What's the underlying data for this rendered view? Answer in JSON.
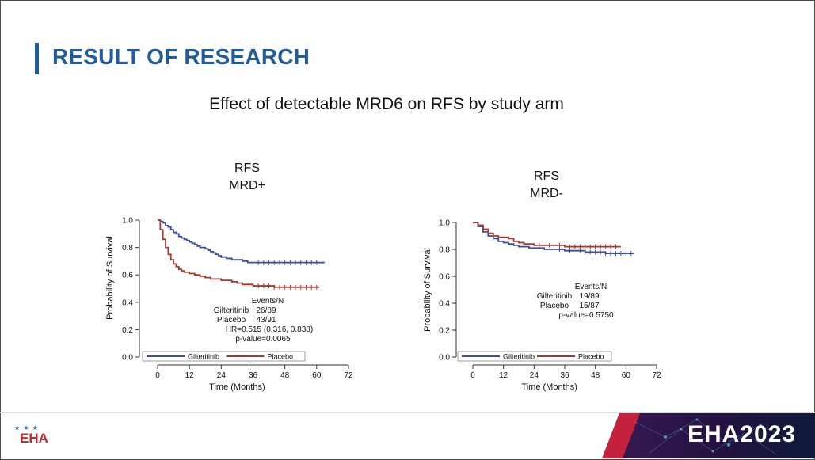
{
  "slide": {
    "title": "RESULT OF RESEARCH",
    "subtitle": "Effect of detectable MRD6 on RFS by study arm"
  },
  "footer": {
    "logo_text": "EHA",
    "logo_stars": "★ ★ ★",
    "banner_text": "EHA2023"
  },
  "colors": {
    "accent": "#1f5c99",
    "gilteritinib": "#3b4f9a",
    "placebo": "#a8382c",
    "logo_red": "#c0282d",
    "banner_dark": "#2a1545",
    "banner_red": "#d4223a"
  },
  "chart_data": [
    {
      "type": "line",
      "subtype": "kaplan-meier",
      "title": [
        "RFS",
        "MRD+"
      ],
      "xlabel": "Time (Months)",
      "ylabel": "Probability of Survival",
      "xlim": [
        0,
        72
      ],
      "ylim": [
        0,
        1.0
      ],
      "x_ticks": [
        "0",
        "12",
        "24",
        "36",
        "48",
        "60",
        "72"
      ],
      "y_ticks": [
        "0.0",
        "0.2",
        "0.4",
        "0.6",
        "0.8",
        "1.0"
      ],
      "grid": false,
      "legend": "bottom",
      "stats": {
        "header": "Events/N",
        "rows": [
          {
            "label": "Gilteritinib",
            "value": "26/89"
          },
          {
            "label": "Placebo",
            "value": "43/91"
          }
        ],
        "hr": "HR=0.515 (0.316, 0.838)",
        "p": "p-value=0.0065"
      },
      "series": [
        {
          "name": "Gilteritinib",
          "x": [
            0,
            1,
            2,
            3,
            4,
            5,
            6,
            7,
            8,
            9,
            10,
            11,
            12,
            13,
            14,
            15,
            16,
            17,
            18,
            19,
            20,
            21,
            22,
            23,
            24,
            26,
            28,
            30,
            32,
            34,
            36,
            40,
            44,
            48,
            52,
            56,
            60,
            63
          ],
          "y": [
            1.0,
            0.99,
            0.98,
            0.96,
            0.95,
            0.93,
            0.91,
            0.9,
            0.88,
            0.87,
            0.86,
            0.85,
            0.84,
            0.83,
            0.82,
            0.81,
            0.8,
            0.8,
            0.79,
            0.78,
            0.77,
            0.76,
            0.75,
            0.74,
            0.73,
            0.72,
            0.71,
            0.71,
            0.7,
            0.69,
            0.69,
            0.69,
            0.69,
            0.69,
            0.69,
            0.69,
            0.69,
            0.69
          ],
          "censor_x": [
            38,
            40,
            42,
            44,
            46,
            48,
            50,
            52,
            54,
            56,
            58,
            60,
            62
          ]
        },
        {
          "name": "Placebo",
          "x": [
            0,
            1,
            2,
            3,
            4,
            5,
            6,
            7,
            8,
            9,
            10,
            12,
            14,
            16,
            18,
            20,
            22,
            24,
            26,
            28,
            30,
            32,
            34,
            36,
            40,
            44,
            48,
            52,
            56,
            60,
            61
          ],
          "y": [
            1.0,
            0.93,
            0.86,
            0.8,
            0.75,
            0.71,
            0.68,
            0.66,
            0.64,
            0.63,
            0.62,
            0.61,
            0.6,
            0.59,
            0.58,
            0.57,
            0.57,
            0.56,
            0.56,
            0.55,
            0.54,
            0.53,
            0.53,
            0.52,
            0.52,
            0.51,
            0.51,
            0.51,
            0.51,
            0.51,
            0.51
          ],
          "censor_x": [
            36,
            38,
            40,
            42,
            44,
            46,
            48,
            50,
            52,
            54,
            56,
            58,
            60
          ]
        }
      ]
    },
    {
      "type": "line",
      "subtype": "kaplan-meier",
      "title": [
        "RFS",
        "MRD-"
      ],
      "xlabel": "Time (Months)",
      "ylabel": "Probability of Survival",
      "xlim": [
        0,
        72
      ],
      "ylim": [
        0,
        1.0
      ],
      "x_ticks": [
        "0",
        "12",
        "24",
        "36",
        "48",
        "60",
        "72"
      ],
      "y_ticks": [
        "0.0",
        "0.2",
        "0.4",
        "0.6",
        "0.8",
        "1.0"
      ],
      "grid": false,
      "legend": "bottom",
      "stats": {
        "header": "Events/N",
        "rows": [
          {
            "label": "Gilteritinib",
            "value": "19/89"
          },
          {
            "label": "Placebo",
            "value": "15/87"
          }
        ],
        "p": "p-value=0.5750"
      },
      "series": [
        {
          "name": "Gilteritinib",
          "x": [
            0,
            2,
            4,
            6,
            8,
            10,
            12,
            14,
            16,
            18,
            20,
            22,
            24,
            28,
            32,
            36,
            40,
            44,
            48,
            52,
            56,
            60,
            63
          ],
          "y": [
            1.0,
            0.97,
            0.93,
            0.9,
            0.88,
            0.86,
            0.85,
            0.84,
            0.83,
            0.82,
            0.82,
            0.81,
            0.81,
            0.8,
            0.8,
            0.79,
            0.79,
            0.78,
            0.78,
            0.77,
            0.77,
            0.77,
            0.77
          ],
          "censor_x": [
            34,
            38,
            42,
            44,
            46,
            48,
            50,
            52,
            54,
            56,
            58,
            60,
            62
          ]
        },
        {
          "name": "Placebo",
          "x": [
            0,
            2,
            4,
            6,
            8,
            10,
            12,
            14,
            16,
            18,
            20,
            22,
            24,
            28,
            32,
            36,
            40,
            44,
            48,
            52,
            56,
            58
          ],
          "y": [
            1.0,
            0.98,
            0.95,
            0.92,
            0.9,
            0.89,
            0.89,
            0.88,
            0.86,
            0.85,
            0.84,
            0.84,
            0.83,
            0.83,
            0.83,
            0.82,
            0.82,
            0.82,
            0.82,
            0.82,
            0.82,
            0.82
          ],
          "censor_x": [
            26,
            30,
            34,
            38,
            40,
            42,
            44,
            46,
            48,
            50,
            52,
            54,
            56
          ]
        }
      ]
    }
  ]
}
